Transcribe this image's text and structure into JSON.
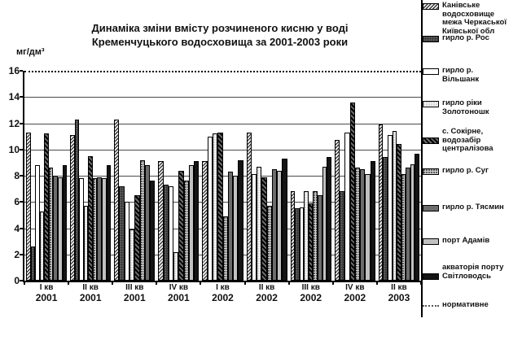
{
  "title": {
    "line1": "Динаміка зміни вмісту розчиненого кисню у воді",
    "line2": "Кременчуцького водосховища за 2001-2003 роки"
  },
  "y_axis": {
    "unit": "мг/дм³"
  },
  "chart_data": {
    "type": "bar",
    "title": "Динаміка зміни вмісту розчиненого кисню у воді Кременчуцького водосховища за 2001-2003 роки",
    "ylabel": "мг/дм³",
    "ylim": [
      0,
      16
    ],
    "yticks": [
      0,
      2,
      4,
      6,
      8,
      10,
      12,
      14,
      16
    ],
    "grid": "horizontal",
    "legend_position": "right",
    "normative": {
      "label": "нормативне",
      "value": 16,
      "line_style": "dotted"
    },
    "series": [
      {
        "label": "Канівське водосховище межа Черкаської Київської обл",
        "pattern": "diagonal-hatch"
      },
      {
        "label": "гирло р. Рос",
        "pattern": "dark-stipple"
      },
      {
        "label": "гирло р. Вільшанк",
        "pattern": "white"
      },
      {
        "label": "гирло ріки Золотоношк",
        "pattern": "light-stipple"
      },
      {
        "label": "с. Сокірне, водозабір централізова",
        "pattern": "dark-hatch"
      },
      {
        "label": "гирло р. Суг",
        "pattern": "medium-stipple"
      },
      {
        "label": "гирло р. Тясмин",
        "pattern": "dark-dots"
      },
      {
        "label": "порт Адамів",
        "pattern": "fine-stipple"
      },
      {
        "label": "акваторія порту Світловодсь",
        "pattern": "solid-dark"
      }
    ],
    "groups": [
      {
        "quarter": "І кв",
        "year": "2001",
        "bars": [
          {
            "s": 0,
            "v": 11.3
          },
          {
            "s": 1,
            "v": 2.6
          },
          {
            "s": 2,
            "v": 8.8
          },
          {
            "s": 3,
            "v": 5.3
          },
          {
            "s": 4,
            "v": 11.2
          },
          {
            "s": 5,
            "v": 8.6
          },
          {
            "s": 6,
            "v": 8.0
          },
          {
            "s": 7,
            "v": 7.9
          },
          {
            "s": 8,
            "v": 8.8
          }
        ]
      },
      {
        "quarter": "ІІ кв",
        "year": "2001",
        "bars": [
          {
            "s": 0,
            "v": 11.1
          },
          {
            "s": 1,
            "v": 12.3
          },
          {
            "s": 2,
            "v": 7.8
          },
          {
            "s": 3,
            "v": 5.7
          },
          {
            "s": 4,
            "v": 9.5
          },
          {
            "s": 5,
            "v": 7.8
          },
          {
            "s": 6,
            "v": 7.9
          },
          {
            "s": 7,
            "v": 7.8
          },
          {
            "s": 8,
            "v": 8.8
          }
        ]
      },
      {
        "quarter": "ІІІ кв",
        "year": "2001",
        "bars": [
          {
            "s": 0,
            "v": 12.3
          },
          {
            "s": 1,
            "v": 7.2
          },
          {
            "s": 2,
            "v": 6.0
          },
          {
            "s": 3,
            "v": 3.9
          },
          {
            "s": 4,
            "v": 6.5
          },
          {
            "s": 5,
            "v": 9.2
          },
          {
            "s": 6,
            "v": 8.8
          },
          {
            "s": 8,
            "v": 7.6
          }
        ]
      },
      {
        "quarter": "IV кв",
        "year": "2001",
        "bars": [
          {
            "s": 0,
            "v": 9.1
          },
          {
            "s": 1,
            "v": 7.3
          },
          {
            "s": 2,
            "v": 7.2
          },
          {
            "s": 3,
            "v": 2.2
          },
          {
            "s": 4,
            "v": 8.4
          },
          {
            "s": 5,
            "v": 7.6
          },
          {
            "s": 7,
            "v": 8.8
          },
          {
            "s": 8,
            "v": 9.1
          }
        ]
      },
      {
        "quarter": "І кв",
        "year": "2002",
        "bars": [
          {
            "s": 0,
            "v": 9.1
          },
          {
            "s": 2,
            "v": 11.0
          },
          {
            "s": 3,
            "v": 11.2
          },
          {
            "s": 4,
            "v": 11.3
          },
          {
            "s": 5,
            "v": 4.9
          },
          {
            "s": 6,
            "v": 8.3
          },
          {
            "s": 7,
            "v": 8.0
          },
          {
            "s": 8,
            "v": 9.2
          }
        ]
      },
      {
        "quarter": "ІІ кв",
        "year": "2002",
        "bars": [
          {
            "s": 0,
            "v": 11.3
          },
          {
            "s": 2,
            "v": 8.1
          },
          {
            "s": 3,
            "v": 8.7
          },
          {
            "s": 4,
            "v": 7.9
          },
          {
            "s": 5,
            "v": 5.7
          },
          {
            "s": 6,
            "v": 8.5
          },
          {
            "s": 7,
            "v": 8.4
          },
          {
            "s": 8,
            "v": 9.3
          }
        ]
      },
      {
        "quarter": "ІІІ кв",
        "year": "2002",
        "bars": [
          {
            "s": 0,
            "v": 6.8
          },
          {
            "s": 1,
            "v": 5.5
          },
          {
            "s": 2,
            "v": 5.6
          },
          {
            "s": 3,
            "v": 6.8
          },
          {
            "s": 4,
            "v": 5.9
          },
          {
            "s": 5,
            "v": 6.8
          },
          {
            "s": 6,
            "v": 6.5
          },
          {
            "s": 7,
            "v": 8.7
          },
          {
            "s": 8,
            "v": 9.4
          }
        ]
      },
      {
        "quarter": "IV кв",
        "year": "2002",
        "bars": [
          {
            "s": 0,
            "v": 10.7
          },
          {
            "s": 1,
            "v": 6.8
          },
          {
            "s": 2,
            "v": 11.3
          },
          {
            "s": 4,
            "v": 13.6
          },
          {
            "s": 5,
            "v": 8.6
          },
          {
            "s": 6,
            "v": 8.5
          },
          {
            "s": 7,
            "v": 8.1
          },
          {
            "s": 8,
            "v": 9.1
          }
        ]
      },
      {
        "quarter": "ІІ кв",
        "year": "2003",
        "bars": [
          {
            "s": 0,
            "v": 11.9
          },
          {
            "s": 1,
            "v": 9.4
          },
          {
            "s": 2,
            "v": 11.1
          },
          {
            "s": 3,
            "v": 11.4
          },
          {
            "s": 4,
            "v": 10.4
          },
          {
            "s": 5,
            "v": 8.1
          },
          {
            "s": 6,
            "v": 8.6
          },
          {
            "s": 7,
            "v": 8.9
          },
          {
            "s": 8,
            "v": 9.7
          }
        ]
      }
    ]
  }
}
